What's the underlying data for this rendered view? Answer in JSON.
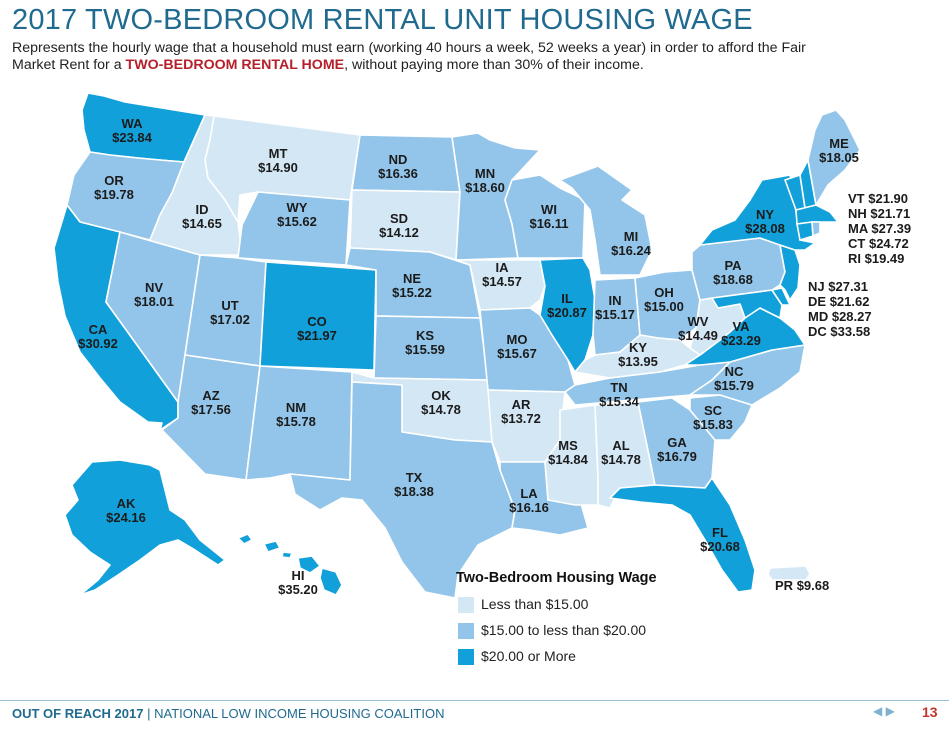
{
  "header": {
    "title": "2017 TWO-BEDROOM RENTAL UNIT HOUSING WAGE",
    "subtitle_pre": "Represents the hourly wage that a household must earn (working 40 hours a week, 52 weeks a year) in order to afford the Fair Market Rent for a ",
    "subtitle_highlight": "TWO-BEDROOM RENTAL HOME",
    "subtitle_post": ", without paying more than 30% of their income."
  },
  "colors": {
    "low": "#d4e7f5",
    "mid": "#92c5e9",
    "high": "#11a0d9",
    "border": "#ffffff",
    "accent_text": "#b5202a",
    "title_blue": "#1f6a8e"
  },
  "legend": {
    "title": "Two-Bedroom Housing Wage",
    "items": [
      {
        "label": "Less than $15.00",
        "color": "#d4e7f5"
      },
      {
        "label": "$15.00 to less than $20.00",
        "color": "#92c5e9"
      },
      {
        "label": "$20.00 or More",
        "color": "#11a0d9"
      }
    ]
  },
  "states": {
    "WA": {
      "abbr": "WA",
      "wage": "$23.84",
      "tier": "high"
    },
    "OR": {
      "abbr": "OR",
      "wage": "$19.78",
      "tier": "mid"
    },
    "CA": {
      "abbr": "CA",
      "wage": "$30.92",
      "tier": "high"
    },
    "ID": {
      "abbr": "ID",
      "wage": "$14.65",
      "tier": "low"
    },
    "NV": {
      "abbr": "NV",
      "wage": "$18.01",
      "tier": "mid"
    },
    "MT": {
      "abbr": "MT",
      "wage": "$14.90",
      "tier": "low"
    },
    "WY": {
      "abbr": "WY",
      "wage": "$15.62",
      "tier": "mid"
    },
    "UT": {
      "abbr": "UT",
      "wage": "$17.02",
      "tier": "mid"
    },
    "CO": {
      "abbr": "CO",
      "wage": "$21.97",
      "tier": "high"
    },
    "AZ": {
      "abbr": "AZ",
      "wage": "$17.56",
      "tier": "mid"
    },
    "NM": {
      "abbr": "NM",
      "wage": "$15.78",
      "tier": "mid"
    },
    "ND": {
      "abbr": "ND",
      "wage": "$16.36",
      "tier": "mid"
    },
    "SD": {
      "abbr": "SD",
      "wage": "$14.12",
      "tier": "low"
    },
    "NE": {
      "abbr": "NE",
      "wage": "$15.22",
      "tier": "mid"
    },
    "KS": {
      "abbr": "KS",
      "wage": "$15.59",
      "tier": "mid"
    },
    "OK": {
      "abbr": "OK",
      "wage": "$14.78",
      "tier": "low"
    },
    "TX": {
      "abbr": "TX",
      "wage": "$18.38",
      "tier": "mid"
    },
    "MN": {
      "abbr": "MN",
      "wage": "$18.60",
      "tier": "mid"
    },
    "IA": {
      "abbr": "IA",
      "wage": "$14.57",
      "tier": "low"
    },
    "MO": {
      "abbr": "MO",
      "wage": "$15.67",
      "tier": "mid"
    },
    "AR": {
      "abbr": "AR",
      "wage": "$13.72",
      "tier": "low"
    },
    "LA": {
      "abbr": "LA",
      "wage": "$16.16",
      "tier": "mid"
    },
    "WI": {
      "abbr": "WI",
      "wage": "$16.11",
      "tier": "mid"
    },
    "IL": {
      "abbr": "IL",
      "wage": "$20.87",
      "tier": "high"
    },
    "MI": {
      "abbr": "MI",
      "wage": "$16.24",
      "tier": "mid"
    },
    "IN": {
      "abbr": "IN",
      "wage": "$15.17",
      "tier": "mid"
    },
    "OH": {
      "abbr": "OH",
      "wage": "$15.00",
      "tier": "mid"
    },
    "KY": {
      "abbr": "KY",
      "wage": "$13.95",
      "tier": "low"
    },
    "TN": {
      "abbr": "TN",
      "wage": "$15.34",
      "tier": "mid"
    },
    "MS": {
      "abbr": "MS",
      "wage": "$14.84",
      "tier": "low"
    },
    "AL": {
      "abbr": "AL",
      "wage": "$14.78",
      "tier": "low"
    },
    "GA": {
      "abbr": "GA",
      "wage": "$16.79",
      "tier": "mid"
    },
    "FL": {
      "abbr": "FL",
      "wage": "$20.68",
      "tier": "high"
    },
    "SC": {
      "abbr": "SC",
      "wage": "$15.83",
      "tier": "mid"
    },
    "NC": {
      "abbr": "NC",
      "wage": "$15.79",
      "tier": "mid"
    },
    "VA": {
      "abbr": "VA",
      "wage": "$23.29",
      "tier": "high"
    },
    "WV": {
      "abbr": "WV",
      "wage": "$14.49",
      "tier": "low"
    },
    "PA": {
      "abbr": "PA",
      "wage": "$18.68",
      "tier": "mid"
    },
    "NY": {
      "abbr": "NY",
      "wage": "$28.08",
      "tier": "high"
    },
    "ME": {
      "abbr": "ME",
      "wage": "$18.05",
      "tier": "mid"
    },
    "AK": {
      "abbr": "AK",
      "wage": "$24.16",
      "tier": "high"
    },
    "HI": {
      "abbr": "HI",
      "wage": "$35.20",
      "tier": "high"
    },
    "PR": {
      "abbr": "PR",
      "wage": "$9.68",
      "tier": "low"
    }
  },
  "small_states": [
    {
      "abbr": "VT",
      "wage": "$21.90",
      "tier": "high"
    },
    {
      "abbr": "NH",
      "wage": "$21.71",
      "tier": "high"
    },
    {
      "abbr": "MA",
      "wage": "$27.39",
      "tier": "high"
    },
    {
      "abbr": "CT",
      "wage": "$24.72",
      "tier": "high"
    },
    {
      "abbr": "RI",
      "wage": "$19.49",
      "tier": "mid"
    },
    {
      "abbr": "NJ",
      "wage": "$27.31",
      "tier": "high"
    },
    {
      "abbr": "DE",
      "wage": "$21.62",
      "tier": "high"
    },
    {
      "abbr": "MD",
      "wage": "$28.27",
      "tier": "high"
    },
    {
      "abbr": "DC",
      "wage": "$33.58",
      "tier": "high"
    }
  ],
  "footer": {
    "report": "OUT OF REACH 2017",
    "separator": " | ",
    "org": "NATIONAL LOW INCOME HOUSING COALITION",
    "page": "13",
    "pager": "◀ ▶"
  }
}
